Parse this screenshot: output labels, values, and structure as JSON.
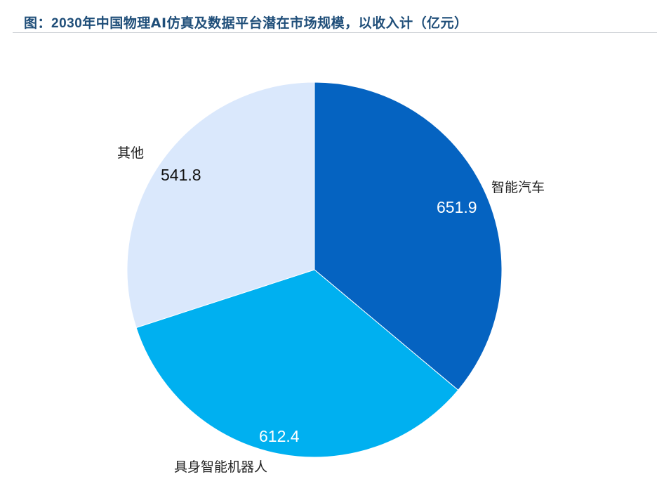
{
  "title": {
    "prefix": "图：",
    "year": "2030",
    "text": "年中国物理AI仿真及数据平台潜在市场规模，以收入计（亿元）"
  },
  "chart_data": {
    "type": "pie",
    "title": "图：2030年中国物理AI仿真及数据平台潜在市场规模，以收入计（亿元）",
    "unit": "亿元",
    "categories": [
      "智能汽车",
      "具身智能机器人",
      "其他"
    ],
    "values": [
      651.9,
      612.4,
      541.8
    ],
    "colors": [
      "#0563C1",
      "#00B0F0",
      "#DAE8FC"
    ],
    "start_angle": "12 o'clock",
    "direction": "clockwise",
    "data_labels": true,
    "legend": "none (category labels placed outside slices)"
  },
  "labels": {
    "car": {
      "name": "智能汽车",
      "value": "651.9"
    },
    "robot": {
      "name": "具身智能机器人",
      "value": "612.4"
    },
    "other": {
      "name": "其他",
      "value": "541.8"
    }
  }
}
